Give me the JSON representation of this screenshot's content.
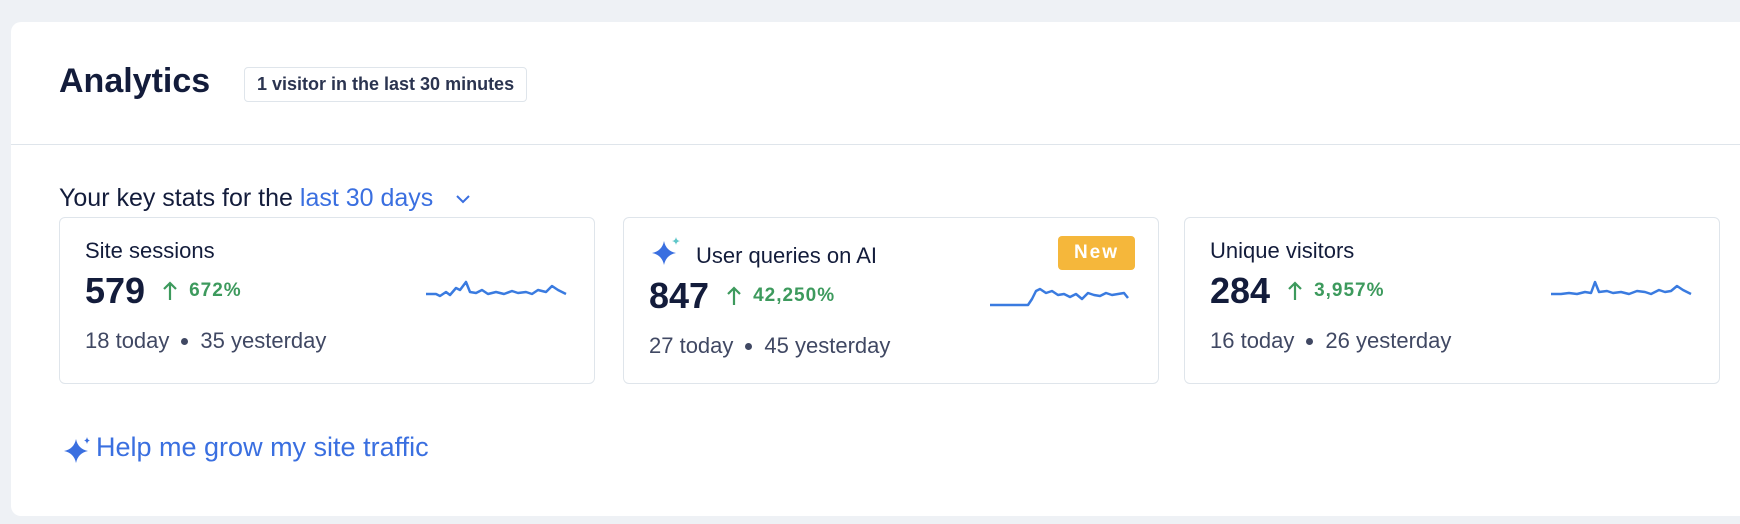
{
  "header": {
    "title": "Analytics",
    "badge": "1 visitor in the last 30 minutes"
  },
  "stats": {
    "prefix": "Your key stats for the",
    "period": "last 30 days"
  },
  "cards": [
    {
      "title": "Site sessions",
      "value": "579",
      "change": "672%",
      "today": "18 today",
      "yesterday": "35 yesterday"
    },
    {
      "title": "User queries on AI",
      "value": "847",
      "change": "42,250%",
      "today": "27 today",
      "yesterday": "45 yesterday",
      "badge": "New"
    },
    {
      "title": "Unique visitors",
      "value": "284",
      "change": "3,957%",
      "today": "16 today",
      "yesterday": "26 yesterday"
    }
  ],
  "help": "Help me grow my site traffic"
}
